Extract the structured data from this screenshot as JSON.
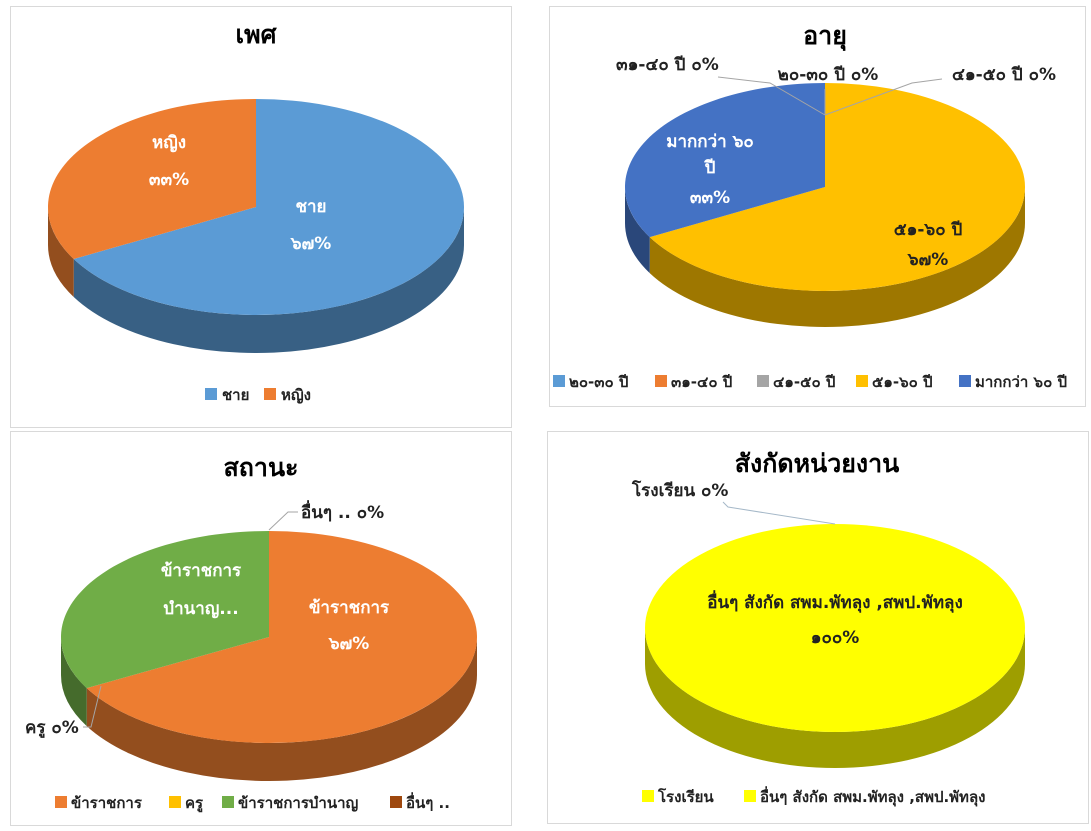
{
  "chart_data": [
    {
      "type": "pie",
      "title": "เพศ",
      "slices": [
        {
          "name": "ชาย",
          "value": 67,
          "label": "67%",
          "color": "#5b9bd5"
        },
        {
          "name": "หญิง",
          "value": 33,
          "label": "33%",
          "color": "#ed7d31"
        }
      ],
      "legend_position": "bottom"
    },
    {
      "type": "pie",
      "title": "อายุ",
      "slices": [
        {
          "name": "20-30 ปี",
          "value": 0,
          "label": "0%",
          "color": "#5b9bd5"
        },
        {
          "name": "31-40 ปี",
          "value": 0,
          "label": "0%",
          "color": "#ed7d31"
        },
        {
          "name": "41-50 ปี",
          "value": 0,
          "label": "0%",
          "color": "#a5a5a5"
        },
        {
          "name": "51-60 ปี",
          "value": 67,
          "label": "67%",
          "color": "#ffc000"
        },
        {
          "name": "มากกว่า 60 ปี",
          "value": 33,
          "label": "33%",
          "color": "#4472c4"
        }
      ],
      "legend_position": "bottom"
    },
    {
      "type": "pie",
      "title": "สถานะ",
      "slices": [
        {
          "name": "ข้าราชการ",
          "value": 67,
          "label": "67%",
          "color": "#ed7d31"
        },
        {
          "name": "ครู",
          "value": 0,
          "label": "0%",
          "color": "#ffc000"
        },
        {
          "name": "ข้าราชการบำนาญ",
          "value": 33,
          "label": "",
          "color": "#70ad47"
        },
        {
          "name": "อื่นๆ ..",
          "value": 0,
          "label": "0%",
          "color": "#9e480e"
        }
      ],
      "legend_position": "bottom"
    },
    {
      "type": "pie",
      "title": "สังกัดหน่วยงาน",
      "slices": [
        {
          "name": "โรงเรียน",
          "value": 0,
          "label": "0%",
          "color": "#ffff00"
        },
        {
          "name": "อื่นๆ สังกัด สพม.พัทลุง ,สพป.พัทลุง",
          "value": 100,
          "label": "100%",
          "color": "#ffff00"
        }
      ],
      "legend_position": "bottom"
    }
  ],
  "text": {
    "gender": {
      "title": "เพศ",
      "male_name": "ชาย",
      "male_pct": "๖๗%",
      "female_name": "หญิง",
      "female_pct": "๓๓%",
      "legend": [
        "ชาย",
        "หญิง"
      ]
    },
    "age": {
      "title": "อายุ",
      "l_2030": "๒๐-๓๐ ปี ๐%",
      "l_3140": "๓๑-๔๐ ปี ๐%",
      "l_4150": "๔๑-๕๐ ปี ๐%",
      "l_5160_a": "๕๑-๖๐ ปี",
      "l_5160_b": "๖๗%",
      "l_60_a": "มากกว่า ๖๐",
      "l_60_b": "ปี",
      "l_60_c": "๓๓%",
      "legend": [
        "๒๐-๓๐ ปี",
        "๓๑-๔๐ ปี",
        "๔๑-๕๐ ปี",
        "๕๑-๖๐ ปี",
        "มากกว่า ๖๐ ปี"
      ]
    },
    "status": {
      "title": "สถานะ",
      "l_other": "อื่นๆ .. ๐%",
      "l_retired_a": "ข้าราชการ",
      "l_retired_b": "บำนาญ...",
      "l_gov_a": "ข้าราชการ",
      "l_gov_b": "๖๗%",
      "l_teacher": "ครู ๐%",
      "legend": [
        "ข้าราชการ",
        "ครู",
        "ข้าราชการบำนาญ",
        "อื่นๆ .."
      ]
    },
    "unit": {
      "title": "สังกัดหน่วยงาน",
      "l_school": "โรงเรียน ๐%",
      "l_other_a": "อื่นๆ สังกัด สพม.พัทลุง ,สพป.พัทลุง",
      "l_other_b": "๑๐๐%",
      "legend": [
        "โรงเรียน",
        "อื่นๆ สังกัด สพม.พัทลุง ,สพป.พัทลุง"
      ]
    }
  }
}
